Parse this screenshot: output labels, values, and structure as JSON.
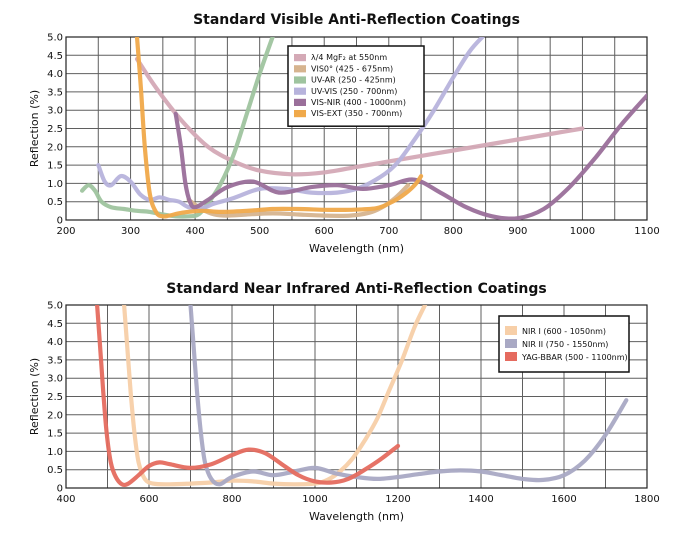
{
  "chart_data": [
    {
      "type": "line",
      "title": "Standard Visible Anti-Reflection Coatings",
      "xlabel": "Wavelength (nm)",
      "ylabel": "Reflection (%)",
      "xlim": [
        200,
        1100
      ],
      "ylim": [
        0,
        5
      ],
      "x_ticks": [
        "200",
        "300",
        "400",
        "500",
        "600",
        "700",
        "800",
        "900",
        "1000",
        "1100"
      ],
      "y_ticks": [
        "0",
        "0.5",
        "1.0",
        "1.5",
        "2.0",
        "2.5",
        "3.0",
        "3.5",
        "4.0",
        "4.5",
        "5.0"
      ],
      "grid": true,
      "legend_position": "top-center",
      "series": [
        {
          "name": "λ/4 MgF₂ at 550nm",
          "color": "#d4a9b6",
          "x": [
            310,
            340,
            380,
            420,
            460,
            500,
            550,
            600,
            650,
            700,
            750,
            800,
            850,
            900,
            950,
            1000
          ],
          "y": [
            4.4,
            3.6,
            2.7,
            2.0,
            1.6,
            1.35,
            1.25,
            1.3,
            1.45,
            1.6,
            1.75,
            1.9,
            2.05,
            2.2,
            2.35,
            2.5
          ]
        },
        {
          "name": "VIS0° (425 - 675nm)",
          "color": "#d6b48f",
          "x": [
            390,
            410,
            430,
            450,
            480,
            520,
            560,
            600,
            640,
            670,
            690,
            710,
            730
          ],
          "y": [
            0.55,
            0.3,
            0.15,
            0.12,
            0.15,
            0.18,
            0.15,
            0.12,
            0.12,
            0.2,
            0.35,
            0.6,
            0.95
          ]
        },
        {
          "name": "UV-AR (250 - 425nm)",
          "color": "#9fc49f",
          "x": [
            225,
            235,
            245,
            255,
            270,
            290,
            310,
            330,
            350,
            370,
            390,
            405,
            420,
            440,
            460,
            480,
            500,
            520
          ],
          "y": [
            0.8,
            0.95,
            0.8,
            0.5,
            0.35,
            0.3,
            0.25,
            0.22,
            0.15,
            0.1,
            0.1,
            0.15,
            0.45,
            1.0,
            1.8,
            2.9,
            4.0,
            5.0
          ]
        },
        {
          "name": "UV-VIS (250 - 700nm)",
          "color": "#b7b3dc",
          "x": [
            250,
            260,
            270,
            285,
            300,
            315,
            330,
            345,
            360,
            375,
            390,
            410,
            430,
            460,
            500,
            540,
            580,
            620,
            650,
            680,
            710,
            740,
            770,
            800,
            825,
            845
          ],
          "y": [
            1.5,
            1.05,
            0.95,
            1.2,
            1.05,
            0.7,
            0.55,
            0.62,
            0.55,
            0.5,
            0.35,
            0.32,
            0.45,
            0.6,
            0.85,
            0.85,
            0.75,
            0.75,
            0.85,
            1.1,
            1.5,
            2.2,
            3.0,
            3.9,
            4.6,
            5.0
          ]
        },
        {
          "name": "VIS-NIR (400 - 1000nm)",
          "color": "#9a6f9a",
          "x": [
            370,
            378,
            385,
            392,
            400,
            420,
            450,
            490,
            530,
            580,
            620,
            660,
            700,
            740,
            780,
            820,
            860,
            900,
            940,
            980,
            1020,
            1060,
            1100
          ],
          "y": [
            2.9,
            2.0,
            1.0,
            0.5,
            0.35,
            0.55,
            0.9,
            1.05,
            0.75,
            0.9,
            0.95,
            0.85,
            0.95,
            1.1,
            0.75,
            0.35,
            0.1,
            0.05,
            0.3,
            0.9,
            1.7,
            2.6,
            3.4
          ]
        },
        {
          "name": "VIS-EXT (350 - 700nm)",
          "color": "#f0a94a",
          "x": [
            310,
            316,
            322,
            330,
            340,
            350,
            360,
            380,
            410,
            440,
            480,
            520,
            560,
            600,
            640,
            680,
            700,
            720,
            740,
            750
          ],
          "y": [
            5.0,
            3.6,
            2.0,
            0.7,
            0.2,
            0.1,
            0.12,
            0.2,
            0.25,
            0.22,
            0.25,
            0.3,
            0.3,
            0.28,
            0.28,
            0.32,
            0.45,
            0.65,
            0.95,
            1.2
          ]
        }
      ]
    },
    {
      "type": "line",
      "title": "Standard Near Infrared Anti-Reflection Coatings",
      "xlabel": "Wavelength (nm)",
      "ylabel": "Reflection (%)",
      "xlim": [
        400,
        1800
      ],
      "ylim": [
        0,
        5
      ],
      "x_ticks": [
        "400",
        "600",
        "800",
        "1000",
        "1200",
        "1400",
        "1600",
        "1800"
      ],
      "y_ticks": [
        "0",
        "0.5",
        "1.0",
        "1.5",
        "2.0",
        "2.5",
        "3.0",
        "3.5",
        "4.0",
        "4.5",
        "5.0"
      ],
      "grid": true,
      "legend_position": "top-right",
      "series": [
        {
          "name": "NIR I (600 - 1050nm)",
          "color": "#f7cfa8",
          "x": [
            540,
            548,
            556,
            565,
            575,
            590,
            610,
            650,
            700,
            750,
            800,
            850,
            900,
            950,
            1000,
            1030,
            1060,
            1090,
            1120,
            1150,
            1180,
            1210,
            1240,
            1265
          ],
          "y": [
            5.0,
            3.8,
            2.6,
            1.5,
            0.7,
            0.25,
            0.12,
            0.1,
            0.12,
            0.15,
            0.2,
            0.18,
            0.12,
            0.1,
            0.12,
            0.22,
            0.45,
            0.8,
            1.3,
            1.9,
            2.7,
            3.5,
            4.4,
            5.0
          ]
        },
        {
          "name": "NIR II (750 - 1550nm)",
          "color": "#a9a9c4",
          "x": [
            700,
            708,
            716,
            725,
            735,
            750,
            770,
            800,
            850,
            900,
            950,
            1000,
            1050,
            1100,
            1150,
            1200,
            1250,
            1300,
            1350,
            1400,
            1450,
            1500,
            1550,
            1600,
            1650,
            1700,
            1750
          ],
          "y": [
            5.0,
            3.8,
            2.6,
            1.5,
            0.7,
            0.25,
            0.1,
            0.3,
            0.45,
            0.35,
            0.45,
            0.55,
            0.4,
            0.3,
            0.25,
            0.3,
            0.38,
            0.45,
            0.48,
            0.45,
            0.35,
            0.25,
            0.22,
            0.35,
            0.75,
            1.45,
            2.4
          ]
        },
        {
          "name": "YAG-BBAR (500 - 1100nm)",
          "color": "#e56b5f",
          "x": [
            475,
            482,
            490,
            498,
            508,
            520,
            535,
            550,
            575,
            600,
            625,
            650,
            700,
            750,
            800,
            840,
            880,
            920,
            960,
            1000,
            1040,
            1080,
            1120,
            1160,
            1200
          ],
          "y": [
            5.0,
            3.9,
            2.6,
            1.5,
            0.7,
            0.3,
            0.1,
            0.12,
            0.35,
            0.6,
            0.7,
            0.65,
            0.55,
            0.65,
            0.9,
            1.05,
            0.95,
            0.65,
            0.35,
            0.18,
            0.15,
            0.25,
            0.5,
            0.8,
            1.15
          ]
        }
      ]
    }
  ]
}
